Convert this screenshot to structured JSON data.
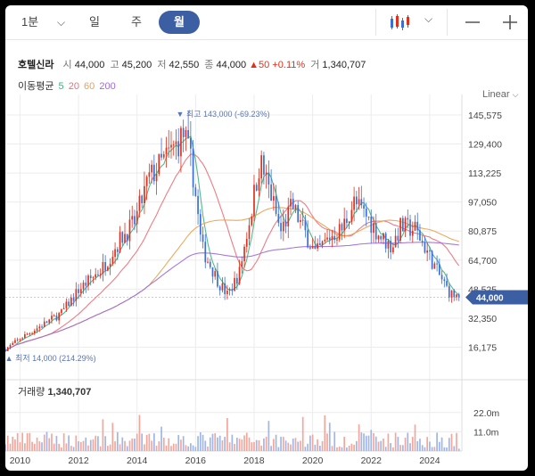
{
  "toolbar": {
    "range_label": "1분",
    "tabs": [
      "일",
      "주",
      "월"
    ],
    "active_tab": "월",
    "icons": [
      "candlestick-icon",
      "chevron-down-icon",
      "minus-icon",
      "plus-icon"
    ]
  },
  "stock": {
    "name": "호텔신라",
    "open_label": "시",
    "open": "44,000",
    "high_label": "고",
    "high": "45,200",
    "low_label": "저",
    "low": "42,550",
    "close_label": "종",
    "close": "44,000",
    "change": "▲50",
    "change_pct": "+0.11%",
    "volume_label": "거",
    "volume": "1,340,707"
  },
  "ma_legend": {
    "label": "이동평균",
    "periods": [
      {
        "value": "5",
        "color": "#3fb27f"
      },
      {
        "value": "20",
        "color": "#e8707a"
      },
      {
        "value": "60",
        "color": "#e8a24c"
      },
      {
        "value": "200",
        "color": "#9d6cd8"
      }
    ]
  },
  "scale_label": "Linear",
  "colors": {
    "up": "#e0301e",
    "down": "#3c6fd6",
    "grid": "#ececec",
    "axis_text": "#444444",
    "price_tag": "#3c5fa3",
    "extreme_text": "#5a75b8"
  },
  "chart_data": {
    "type": "candlestick",
    "ylim": [
      8000,
      152000
    ],
    "y_ticks": [
      "145,575",
      "129,400",
      "113,225",
      "97,050",
      "80,875",
      "64,700",
      "48,525",
      "32,350",
      "16,175"
    ],
    "y_tick_values": [
      145575,
      129400,
      113225,
      97050,
      80875,
      64700,
      48525,
      32350,
      16175
    ],
    "x_ticks": [
      "2010",
      "2012",
      "2014",
      "2016",
      "2018",
      "2020",
      "2022",
      "2024"
    ],
    "x_tick_years": [
      2010,
      2012,
      2014,
      2016,
      2018,
      2020,
      2022,
      2024
    ],
    "x_start": 2009.5,
    "x_end": 2025.1,
    "period": "monthly",
    "current_price_label": "44,000",
    "current_price": 44000,
    "max_label": "▼ 최고 143,000 (-69.23%)",
    "max_value": 143000,
    "max_time": 2015.58,
    "min_label": "▲ 최저 14,000 (214.29%)",
    "min_value": 14000,
    "min_time": 2009.55,
    "anchors": [
      [
        2009.5,
        15000
      ],
      [
        2010.0,
        21000
      ],
      [
        2010.7,
        28000
      ],
      [
        2011.4,
        35000
      ],
      [
        2012.0,
        48000
      ],
      [
        2012.8,
        60000
      ],
      [
        2013.5,
        78000
      ],
      [
        2013.9,
        85000
      ],
      [
        2014.4,
        110000
      ],
      [
        2014.9,
        120000
      ],
      [
        2015.3,
        128000
      ],
      [
        2015.6,
        135000
      ],
      [
        2015.9,
        115000
      ],
      [
        2016.2,
        72000
      ],
      [
        2016.8,
        52000
      ],
      [
        2017.1,
        45000
      ],
      [
        2017.5,
        58000
      ],
      [
        2017.9,
        92000
      ],
      [
        2018.2,
        120000
      ],
      [
        2018.6,
        100000
      ],
      [
        2018.9,
        80000
      ],
      [
        2019.3,
        95000
      ],
      [
        2019.8,
        78000
      ],
      [
        2020.1,
        68000
      ],
      [
        2020.6,
        78000
      ],
      [
        2021.0,
        82000
      ],
      [
        2021.4,
        97000
      ],
      [
        2021.9,
        88000
      ],
      [
        2022.3,
        78000
      ],
      [
        2022.7,
        72000
      ],
      [
        2023.0,
        83000
      ],
      [
        2023.5,
        82000
      ],
      [
        2023.9,
        70000
      ],
      [
        2024.3,
        57000
      ],
      [
        2024.7,
        46000
      ],
      [
        2025.0,
        44000
      ]
    ],
    "ma_periods": [
      5,
      20,
      60,
      200
    ],
    "volume": {
      "label": "거래량",
      "value": "1,340,707",
      "y_ticks": [
        "22.0m",
        "11.0m"
      ],
      "y_tick_values": [
        22000000,
        11000000
      ],
      "ylim": [
        0,
        28000000
      ]
    }
  }
}
